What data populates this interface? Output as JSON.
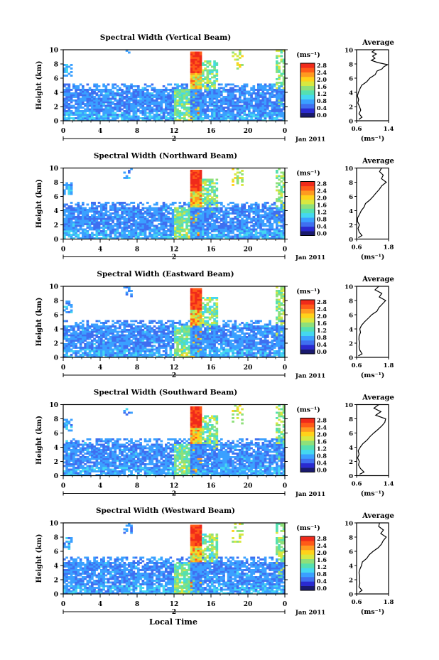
{
  "figure": {
    "xlabel": "Local Time",
    "date_label": "Jan 2011",
    "unit_label": "(ms⁻¹)",
    "avg_title": "Average",
    "colorbar_ticks": [
      "0.0",
      "0.4",
      "0.8",
      "1.2",
      "1.6",
      "2.0",
      "2.4",
      "2.8"
    ],
    "colors": [
      "#1a1a6e",
      "#2a2ad0",
      "#3f6ff0",
      "#3aa0ff",
      "#44d8f0",
      "#55e0b0",
      "#8ee07a",
      "#d8e840",
      "#ffd21a",
      "#ff9a20",
      "#ff5a18",
      "#f02a1a"
    ]
  },
  "chart_data": [
    {
      "type": "heatmap",
      "title": "Spectral Width (Vertical Beam)",
      "ylabel": "Height (km)",
      "xlabel": "Local Time",
      "x_ticks": [
        "0",
        "4",
        "8",
        "12",
        "16",
        "20",
        "0"
      ],
      "day_labels": [
        "2"
      ],
      "y_ticks": [
        "0",
        "2",
        "4",
        "6",
        "8",
        "10"
      ],
      "xlim": [
        0,
        24
      ],
      "ylim": [
        0,
        10
      ],
      "zlim": [
        0.0,
        2.8
      ],
      "average": {
        "title": "Average",
        "xlabel": "(ms⁻¹)",
        "xlim": [
          0.6,
          1.4
        ],
        "x_ticks": [
          "0.6",
          "1.4"
        ],
        "y_ticks": [
          "0",
          "2",
          "4",
          "6",
          "8",
          "10"
        ],
        "profile": [
          [
            0.2,
            0.68
          ],
          [
            0.5,
            0.75
          ],
          [
            1.0,
            0.66
          ],
          [
            1.5,
            0.7
          ],
          [
            2.0,
            0.66
          ],
          [
            2.5,
            0.63
          ],
          [
            3.0,
            0.64
          ],
          [
            3.5,
            0.62
          ],
          [
            4.0,
            0.64
          ],
          [
            4.5,
            0.68
          ],
          [
            5.0,
            0.75
          ],
          [
            5.5,
            0.85
          ],
          [
            6.0,
            0.95
          ],
          [
            6.5,
            1.05
          ],
          [
            7.0,
            1.1
          ],
          [
            7.3,
            1.22
          ],
          [
            7.6,
            1.3
          ],
          [
            7.9,
            1.38
          ],
          [
            8.2,
            1.15
          ],
          [
            8.5,
            0.95
          ],
          [
            8.8,
            1.05
          ],
          [
            9.1,
            0.98
          ],
          [
            9.4,
            1.1
          ],
          [
            9.7,
            1.0
          ],
          [
            10.0,
            1.05
          ]
        ]
      }
    },
    {
      "type": "heatmap",
      "title": "Spectral Width (Northward Beam)",
      "ylabel": "Height (km)",
      "xlabel": "Local Time",
      "x_ticks": [
        "0",
        "4",
        "8",
        "12",
        "16",
        "20",
        "0"
      ],
      "day_labels": [
        "2"
      ],
      "y_ticks": [
        "0",
        "2",
        "4",
        "6",
        "8",
        "10"
      ],
      "xlim": [
        0,
        24
      ],
      "ylim": [
        0,
        10
      ],
      "zlim": [
        0.0,
        2.8
      ],
      "average": {
        "title": "Average",
        "xlabel": "(ms⁻¹)",
        "xlim": [
          0.6,
          1.8
        ],
        "x_ticks": [
          "0.6",
          "1.8"
        ],
        "y_ticks": [
          "0",
          "2",
          "4",
          "6",
          "8",
          "10"
        ],
        "profile": [
          [
            0.2,
            0.7
          ],
          [
            0.5,
            0.8
          ],
          [
            1.0,
            0.72
          ],
          [
            1.5,
            0.68
          ],
          [
            2.0,
            0.7
          ],
          [
            2.5,
            0.66
          ],
          [
            3.0,
            0.67
          ],
          [
            3.5,
            0.7
          ],
          [
            4.0,
            0.75
          ],
          [
            4.5,
            0.85
          ],
          [
            5.0,
            0.95
          ],
          [
            5.5,
            1.1
          ],
          [
            6.0,
            1.25
          ],
          [
            6.5,
            1.35
          ],
          [
            7.0,
            1.45
          ],
          [
            7.5,
            1.55
          ],
          [
            8.0,
            1.7
          ],
          [
            8.5,
            1.5
          ],
          [
            9.0,
            1.62
          ],
          [
            9.5,
            1.45
          ],
          [
            10.0,
            1.55
          ]
        ]
      }
    },
    {
      "type": "heatmap",
      "title": "Spectral Width (Eastward Beam)",
      "ylabel": "Height (km)",
      "xlabel": "Local Time",
      "x_ticks": [
        "0",
        "4",
        "8",
        "12",
        "16",
        "20",
        "0"
      ],
      "day_labels": [
        "2"
      ],
      "y_ticks": [
        "0",
        "2",
        "4",
        "6",
        "8",
        "10"
      ],
      "xlim": [
        0,
        24
      ],
      "ylim": [
        0,
        10
      ],
      "zlim": [
        0.0,
        2.8
      ],
      "average": {
        "title": "Average",
        "xlabel": "(ms⁻¹)",
        "xlim": [
          0.6,
          1.8
        ],
        "x_ticks": [
          "0.6",
          "1.8"
        ],
        "y_ticks": [
          "0",
          "2",
          "4",
          "6",
          "8",
          "10"
        ],
        "profile": [
          [
            0.2,
            0.7
          ],
          [
            0.5,
            0.78
          ],
          [
            1.0,
            0.7
          ],
          [
            1.5,
            0.68
          ],
          [
            2.0,
            0.72
          ],
          [
            2.5,
            0.68
          ],
          [
            3.0,
            0.7
          ],
          [
            3.5,
            0.72
          ],
          [
            4.0,
            0.75
          ],
          [
            4.5,
            0.8
          ],
          [
            5.0,
            0.9
          ],
          [
            5.5,
            1.05
          ],
          [
            6.0,
            1.2
          ],
          [
            6.5,
            1.35
          ],
          [
            7.0,
            1.45
          ],
          [
            7.5,
            1.6
          ],
          [
            8.0,
            1.7
          ],
          [
            8.5,
            1.45
          ],
          [
            9.0,
            1.55
          ],
          [
            9.5,
            1.3
          ],
          [
            10.0,
            1.4
          ]
        ]
      }
    },
    {
      "type": "heatmap",
      "title": "Spectral Width (Southward Beam)",
      "ylabel": "Height (km)",
      "xlabel": "Local Time",
      "x_ticks": [
        "0",
        "4",
        "8",
        "12",
        "16",
        "20",
        "0"
      ],
      "day_labels": [
        "2"
      ],
      "y_ticks": [
        "0",
        "2",
        "4",
        "6",
        "8",
        "10"
      ],
      "xlim": [
        0,
        24
      ],
      "ylim": [
        0,
        10
      ],
      "zlim": [
        0.0,
        2.8
      ],
      "average": {
        "title": "Average",
        "xlabel": "(ms⁻¹)",
        "xlim": [
          0.6,
          1.4
        ],
        "x_ticks": [
          "0.6",
          "1.4"
        ],
        "y_ticks": [
          "0",
          "2",
          "4",
          "6",
          "8",
          "10"
        ],
        "profile": [
          [
            0.2,
            0.7
          ],
          [
            0.5,
            0.8
          ],
          [
            1.0,
            0.7
          ],
          [
            1.5,
            0.66
          ],
          [
            2.0,
            0.68
          ],
          [
            2.5,
            0.64
          ],
          [
            3.0,
            0.65
          ],
          [
            3.5,
            0.66
          ],
          [
            4.0,
            0.7
          ],
          [
            4.5,
            0.75
          ],
          [
            5.0,
            0.85
          ],
          [
            5.5,
            0.95
          ],
          [
            6.0,
            1.05
          ],
          [
            6.5,
            1.15
          ],
          [
            7.0,
            1.25
          ],
          [
            7.5,
            1.3
          ],
          [
            8.0,
            1.35
          ],
          [
            8.5,
            1.1
          ],
          [
            9.0,
            1.2
          ],
          [
            9.5,
            1.05
          ],
          [
            10.0,
            1.15
          ]
        ]
      }
    },
    {
      "type": "heatmap",
      "title": "Spectral Width (Westward Beam)",
      "ylabel": "Height (km)",
      "xlabel": "Local Time",
      "x_ticks": [
        "0",
        "4",
        "8",
        "12",
        "16",
        "20",
        "0"
      ],
      "day_labels": [
        "2"
      ],
      "y_ticks": [
        "0",
        "2",
        "4",
        "6",
        "8",
        "10"
      ],
      "xlim": [
        0,
        24
      ],
      "ylim": [
        0,
        10
      ],
      "zlim": [
        0.0,
        2.8
      ],
      "average": {
        "title": "Average",
        "xlabel": "(ms⁻¹)",
        "xlim": [
          0.6,
          1.8
        ],
        "x_ticks": [
          "0.6",
          "1.8"
        ],
        "y_ticks": [
          "0",
          "2",
          "4",
          "6",
          "8",
          "10"
        ],
        "profile": [
          [
            0.2,
            0.72
          ],
          [
            0.5,
            0.8
          ],
          [
            1.0,
            0.72
          ],
          [
            1.5,
            0.7
          ],
          [
            2.0,
            0.74
          ],
          [
            2.5,
            0.7
          ],
          [
            3.0,
            0.72
          ],
          [
            3.5,
            0.74
          ],
          [
            4.0,
            0.78
          ],
          [
            4.5,
            0.85
          ],
          [
            5.0,
            0.95
          ],
          [
            5.5,
            1.1
          ],
          [
            6.0,
            1.25
          ],
          [
            6.5,
            1.4
          ],
          [
            7.0,
            1.5
          ],
          [
            7.5,
            1.62
          ],
          [
            8.0,
            1.7
          ],
          [
            8.5,
            1.5
          ],
          [
            9.0,
            1.58
          ],
          [
            9.5,
            1.4
          ],
          [
            10.0,
            1.48
          ]
        ]
      }
    }
  ]
}
